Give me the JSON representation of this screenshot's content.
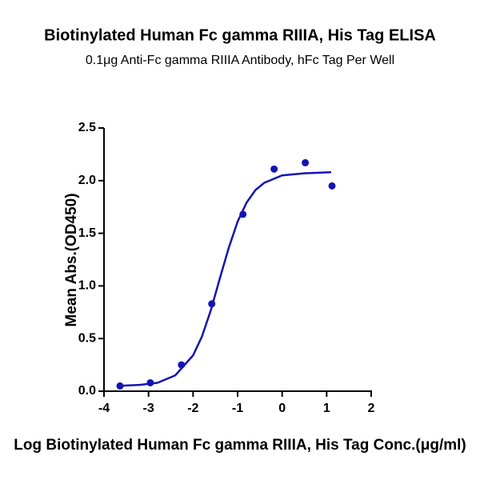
{
  "chart_data": {
    "type": "scatter",
    "title": "Biotinylated Human Fc gamma RIIIA, His Tag ELISA",
    "subtitle": "0.1μg Anti-Fc gamma RIIIA Antibody, hFc Tag Per Well",
    "x_label": "Log Biotinylated Human Fc gamma RIIIA, His Tag Conc.(μg/ml)",
    "y_label": "Mean Abs.(OD450)",
    "xlim": [
      -4,
      2
    ],
    "xticks": [
      -4,
      -3,
      -2,
      -1,
      0,
      1,
      2
    ],
    "ylim": [
      0,
      2.5
    ],
    "yticks": [
      {
        "value": 0,
        "label": "0.0"
      },
      {
        "value": 0.5,
        "label": "0.5"
      },
      {
        "value": 1,
        "label": "1.0"
      },
      {
        "value": 1.5,
        "label": "1.5"
      },
      {
        "value": 2,
        "label": "2.0"
      },
      {
        "value": 2.5,
        "label": "2.5"
      }
    ],
    "series": [
      {
        "style": "marker",
        "color": "#1414b4",
        "x": [
          -3.64,
          -2.96,
          -2.26,
          -1.58,
          -0.88,
          -0.18,
          0.52,
          1.12
        ],
        "values": [
          0.05,
          0.08,
          0.25,
          0.83,
          1.68,
          2.11,
          2.17,
          1.95
        ]
      },
      {
        "style": "line",
        "color": "#1414b4",
        "x": [
          -3.7,
          -3.2,
          -2.8,
          -2.4,
          -2.0,
          -1.8,
          -1.6,
          -1.4,
          -1.2,
          -1.0,
          -0.8,
          -0.6,
          -0.4,
          0,
          0.5,
          1.1
        ],
        "values": [
          0.05,
          0.06,
          0.08,
          0.15,
          0.34,
          0.52,
          0.77,
          1.07,
          1.36,
          1.61,
          1.79,
          1.91,
          1.98,
          2.05,
          2.07,
          2.08
        ]
      }
    ]
  }
}
